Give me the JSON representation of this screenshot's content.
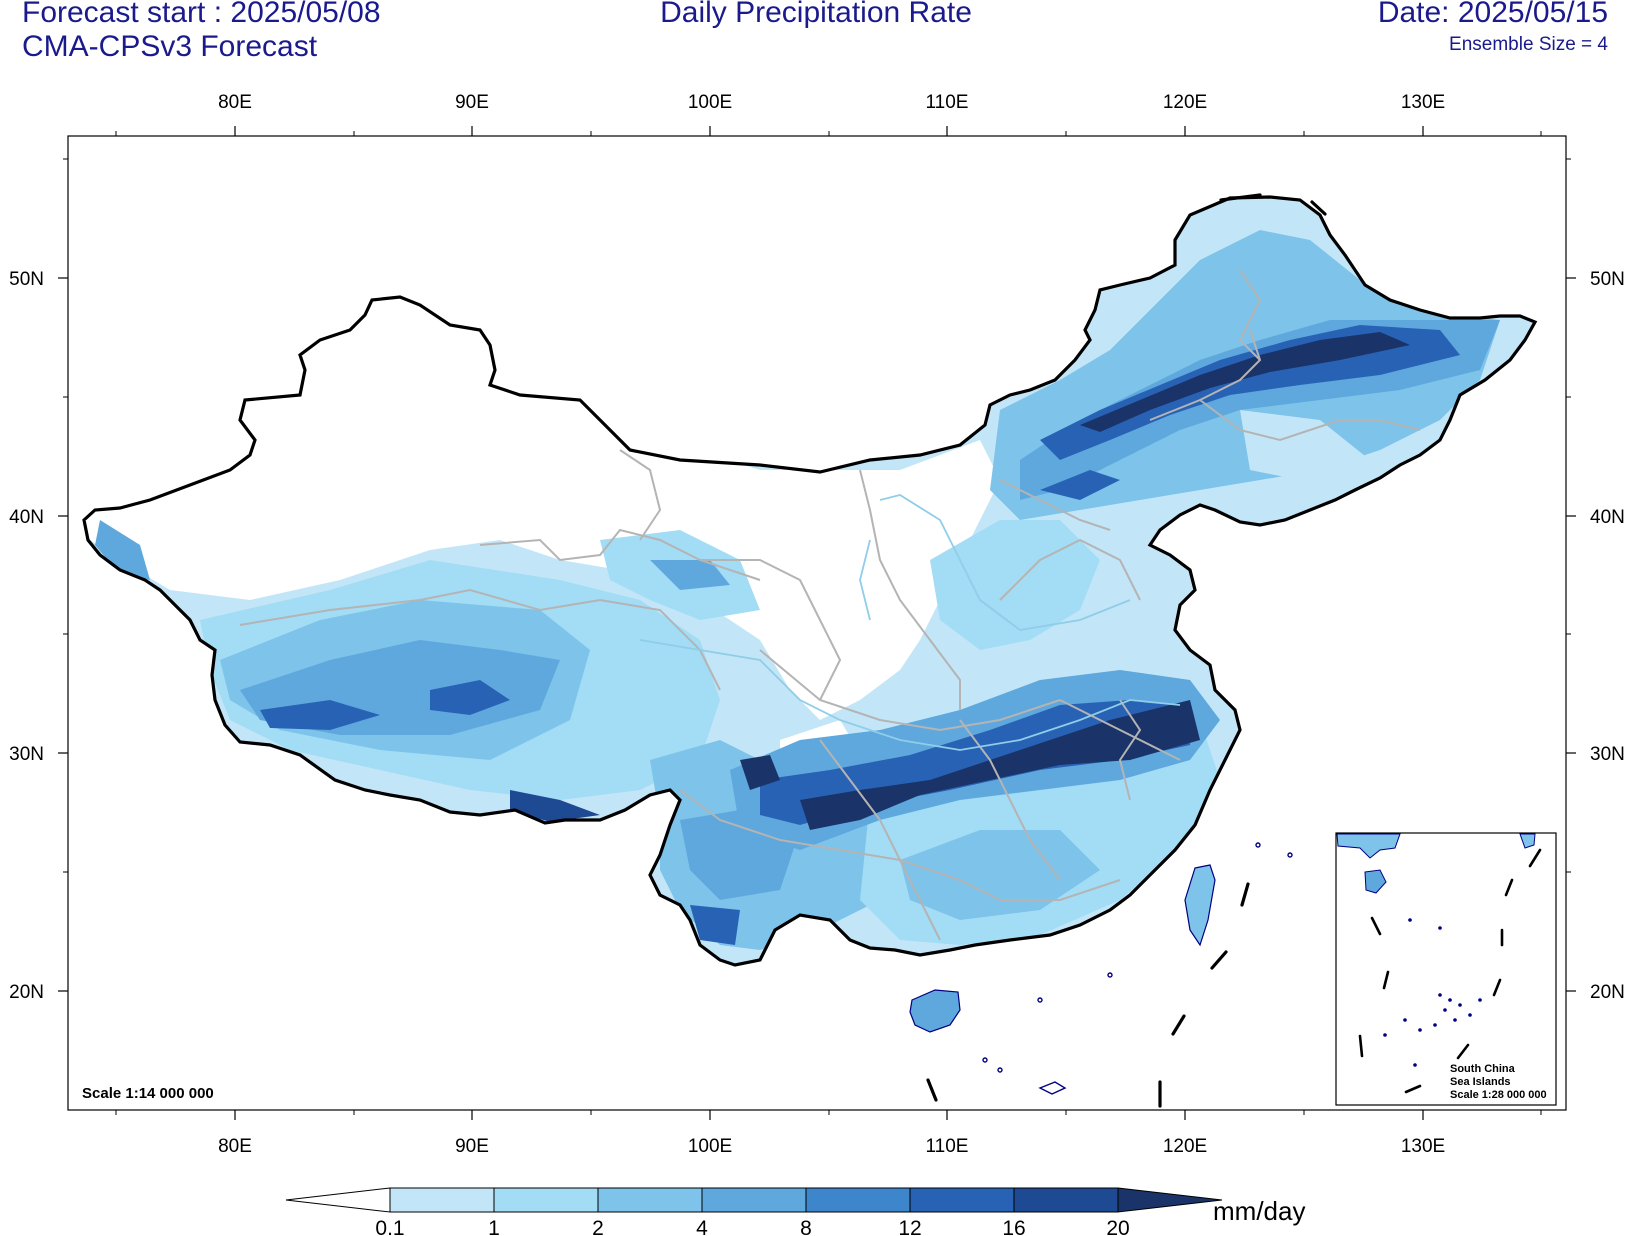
{
  "header": {
    "forecast_start": "Forecast start : 2025/05/08",
    "model": "CMA-CPSv3 Forecast",
    "title": "Daily Precipitation Rate",
    "date": "Date: 2025/05/15",
    "ensemble": "Ensemble Size = 4"
  },
  "axes": {
    "lon_labels": [
      "80E",
      "90E",
      "100E",
      "110E",
      "120E",
      "130E"
    ],
    "lat_labels": [
      "50N",
      "40N",
      "30N",
      "20N"
    ]
  },
  "map_notes": {
    "scale_main": "Scale 1:14 000 000",
    "inset_title1": "South China",
    "inset_title2": "Sea Islands",
    "inset_scale": "Scale 1:28 000 000"
  },
  "colorbar": {
    "unit": "mm/day",
    "levels": [
      "0.1",
      "1",
      "2",
      "4",
      "8",
      "12",
      "16",
      "20"
    ],
    "colors": [
      "#ffffff",
      "#c2e6f7",
      "#a3dcf5",
      "#7ec3ea",
      "#5ea8de",
      "#3e86cc",
      "#2862b4",
      "#1e4a94",
      "#1a3368"
    ]
  },
  "palette": {
    "land_white": "#ffffff",
    "light": "#c2e6f7",
    "pale": "#a3dcf5",
    "mid": "#7ec3ea",
    "midstrong": "#5ea8de",
    "strong": "#3e86cc",
    "deep": "#2862b4",
    "deeper": "#1e4a94",
    "darkest": "#1a3368",
    "border": "#000000",
    "province": "#b4b4b4",
    "river": "#8fcde8",
    "coast": "#000080"
  }
}
